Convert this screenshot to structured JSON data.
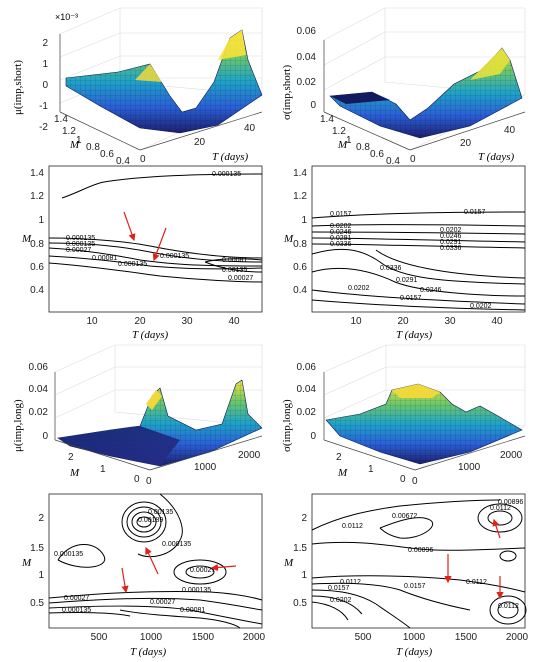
{
  "figure": {
    "exponent_label": "×10⁻³",
    "labels": {
      "mu_short": "μ(imp,short)",
      "sigma_short": "σ(imp,short)",
      "mu_long": "μ(imp,long)",
      "sigma_long": "σ(imp,long)",
      "M": "M",
      "T": "T (days)"
    },
    "ticks": {
      "p1_z": [
        "2",
        "1",
        "0",
        "-1",
        "-2"
      ],
      "p1_M": [
        "1.4",
        "1.2",
        "1",
        "0.8",
        "0.6",
        "0.4"
      ],
      "p1_T": [
        "0",
        "20",
        "40"
      ],
      "p2_z": [
        "0.06",
        "0.04",
        "0.02",
        "0"
      ],
      "p2_M": [
        "1.4",
        "1.2",
        "1",
        "0.8",
        "0.6",
        "0.4"
      ],
      "p2_T": [
        "0",
        "20",
        "40"
      ],
      "p3_y": [
        "1.4",
        "1.2",
        "1",
        "0.8",
        "0.6",
        "0.4"
      ],
      "p3_x": [
        "10",
        "20",
        "30",
        "40"
      ],
      "p4_y": [
        "1.4",
        "1.2",
        "1",
        "0.8",
        "0.6",
        "0.4"
      ],
      "p4_x": [
        "10",
        "20",
        "30",
        "40"
      ],
      "p5_z": [
        "0.06",
        "0.04",
        "0.02",
        "0"
      ],
      "p5_M": [
        "2",
        "1",
        "0"
      ],
      "p5_T": [
        "0",
        "1000",
        "2000"
      ],
      "p6_z": [
        "0.06",
        "0.04",
        "0.02",
        "0"
      ],
      "p6_M": [
        "2",
        "1",
        "0"
      ],
      "p6_T": [
        "0",
        "1000",
        "2000"
      ],
      "p7_y": [
        "2",
        "1.5",
        "1",
        "0.5"
      ],
      "p7_x": [
        "500",
        "1000",
        "1500",
        "2000"
      ],
      "p8_y": [
        "2",
        "1.5",
        "1",
        "0.5"
      ],
      "p8_x": [
        "500",
        "1000",
        "1500",
        "2000"
      ]
    },
    "contour_labels": {
      "p3": [
        "0.000135",
        "0.000135",
        "0.000135",
        "0.00027",
        "0.00081",
        "0.000135",
        "0.00081",
        "0.000135",
        "0.00135",
        "0.00027"
      ],
      "p4": [
        "0.0157",
        "0.0157",
        "0.0202",
        "0.0246",
        "0.0291",
        "0.0336",
        "0.0202",
        "0.0246",
        "0.0291",
        "0.0336",
        "0.0336",
        "0.0291",
        "0.0246",
        "0.0202",
        "0.0157",
        "0.0202"
      ],
      "p7": [
        "0.00189",
        "0.00135",
        "0.000135",
        "0.00027",
        "0.000135",
        "0.00027",
        "0.000135",
        "0.00027",
        "0.00081",
        "0.000135"
      ],
      "p8": [
        "0.00896",
        "0.0112",
        "0.0112",
        "0.00672",
        "0.00896",
        "0.0112",
        "0.0157",
        "0.0112",
        "0.0157",
        "0.0202",
        "0.0112"
      ]
    }
  },
  "chart_data": [
    {
      "type": "area",
      "title": "",
      "zlabel": "μ(imp,short)",
      "xlabel": "T (days)",
      "ylabel": "M",
      "zlim": [
        -0.002,
        0.002
      ],
      "z_scale_exponent": "×10⁻³",
      "x_range": [
        0,
        45
      ],
      "y_range": [
        0.3,
        1.45
      ]
    },
    {
      "type": "area",
      "title": "",
      "zlabel": "σ(imp,short)",
      "xlabel": "T (days)",
      "ylabel": "M",
      "zlim": [
        0,
        0.06
      ],
      "x_range": [
        0,
        45
      ],
      "y_range": [
        0.3,
        1.45
      ]
    },
    {
      "type": "line",
      "title": "",
      "xlabel": "T (days)",
      "ylabel": "M",
      "xlim": [
        0,
        45
      ],
      "ylim": [
        0.3,
        1.45
      ],
      "contour_levels": [
        0.000135,
        0.00027,
        0.00081,
        0.00135
      ],
      "annotations": [
        "red arrows near (18, 0.78) and (23, 0.68)"
      ]
    },
    {
      "type": "line",
      "title": "",
      "xlabel": "T (days)",
      "ylabel": "M",
      "xlim": [
        0,
        45
      ],
      "ylim": [
        0.3,
        1.45
      ],
      "contour_levels": [
        0.0157,
        0.0202,
        0.0246,
        0.0291,
        0.0336
      ]
    },
    {
      "type": "area",
      "title": "",
      "zlabel": "μ(imp,long)",
      "xlabel": "T (days)",
      "ylabel": "M",
      "zlim": [
        0,
        0.06
      ],
      "x_range": [
        0,
        2000
      ],
      "y_range": [
        0,
        2.3
      ]
    },
    {
      "type": "area",
      "title": "",
      "zlabel": "σ(imp,long)",
      "xlabel": "T (days)",
      "ylabel": "M",
      "zlim": [
        0,
        0.06
      ],
      "x_range": [
        0,
        2000
      ],
      "y_range": [
        0,
        2.3
      ]
    },
    {
      "type": "line",
      "title": "",
      "xlabel": "T (days)",
      "ylabel": "M",
      "xlim": [
        0,
        2050
      ],
      "ylim": [
        0.25,
        2.3
      ],
      "contour_levels": [
        0.000135,
        0.00027,
        0.00081,
        0.00135,
        0.00189
      ],
      "annotations": [
        "red arrows near (940, 1.65), (1350, 1.2), (800, 0.75)"
      ]
    },
    {
      "type": "line",
      "title": "",
      "xlabel": "T (days)",
      "ylabel": "M",
      "xlim": [
        0,
        2050
      ],
      "ylim": [
        0.25,
        2.3
      ],
      "contour_levels": [
        0.00672,
        0.00896,
        0.0112,
        0.0157,
        0.0202
      ],
      "annotations": [
        "red arrows near (1800, 2.05), (1200, 0.8), (1700, 0.55)"
      ]
    }
  ]
}
